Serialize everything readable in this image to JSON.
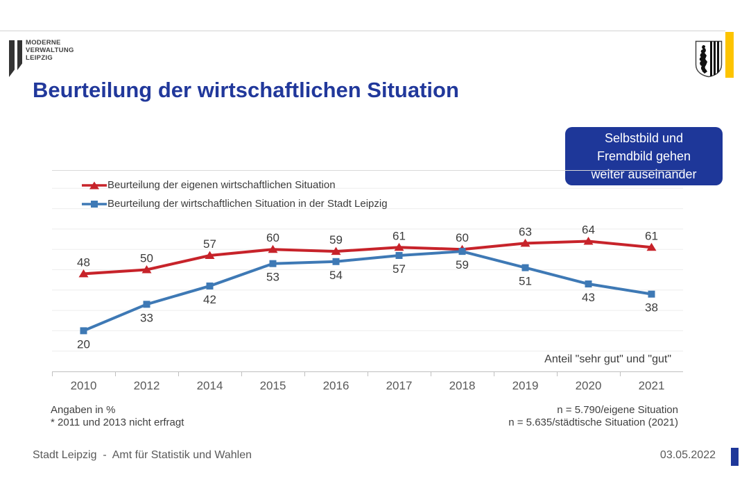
{
  "header": {
    "logo_lines": [
      "MODERNE",
      "VERWALTUNG",
      "LEIPZIG"
    ],
    "title": "Beurteilung der wirtschaftlichen Situation"
  },
  "callout": {
    "lines": [
      "Selbstbild und",
      "Fremdbild gehen",
      "weiter auseinander"
    ],
    "bg_color": "#1E3799",
    "text_color": "#FFFFFF"
  },
  "chart_data": {
    "type": "line",
    "categories": [
      "2010",
      "2012",
      "2014",
      "2015",
      "2016",
      "2017",
      "2018",
      "2019",
      "2020",
      "2021"
    ],
    "series": [
      {
        "name": "Beurteilung der eigenen wirtschaftlichen Situation",
        "color": "#C7232A",
        "marker": "triangle",
        "label_position": "above",
        "values": [
          48,
          50,
          57,
          60,
          59,
          61,
          60,
          63,
          64,
          61
        ]
      },
      {
        "name": "Beurteilung der wirtschaftlichen Situation in der Stadt Leipzig",
        "color": "#3E79B5",
        "marker": "square",
        "label_position": "below",
        "values": [
          20,
          33,
          42,
          53,
          54,
          57,
          59,
          51,
          43,
          38
        ]
      }
    ],
    "annotation": "Anteil \"sehr gut\" und \"gut\"",
    "xlabel": "",
    "ylabel": "",
    "ylim": [
      0,
      99
    ],
    "grid": "horizontal every 10",
    "legend_position": "top-left"
  },
  "footnotes": {
    "left": [
      "Angaben in %",
      "* 2011 und 2013 nicht erfragt"
    ],
    "right": [
      "n = 5.790/eigene Situation",
      "n = 5.635/städtische Situation (2021)"
    ]
  },
  "footer": {
    "left": "Stadt Leipzig  -  Amt für Statistik und Wahlen",
    "date": "03.05.2022"
  },
  "colors": {
    "title_blue": "#21389B",
    "accent_blue": "#1E3799",
    "brand_yellow": "#FDC400",
    "series_red": "#C7232A",
    "series_blue": "#3E79B5",
    "gridline": "#EDEDED",
    "axis": "#BFBFBF",
    "text_dark": "#3B3B3B",
    "text_gray": "#595959"
  }
}
